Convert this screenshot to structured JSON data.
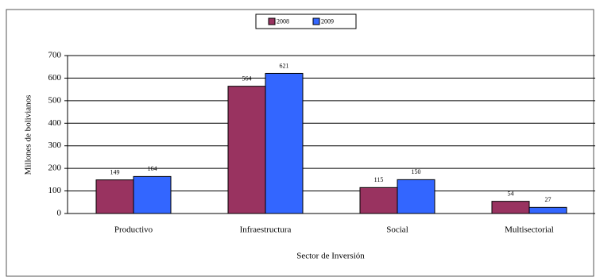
{
  "chart_data": {
    "type": "bar",
    "categories": [
      "Productivo",
      "Infraestructura",
      "Social",
      "Multisectorial"
    ],
    "series": [
      {
        "name": "2008",
        "color": "#993360",
        "values": [
          149,
          564,
          115,
          54
        ]
      },
      {
        "name": "2009",
        "color": "#3366ff",
        "values": [
          164,
          621,
          150,
          27
        ]
      }
    ],
    "ylim": [
      0,
      700
    ],
    "yticks": [
      0,
      100,
      200,
      300,
      400,
      500,
      600,
      700
    ],
    "ylabel": "Millones de bolivianos",
    "xlabel": "Sector de Inversión",
    "grid": true,
    "legend": "top"
  }
}
